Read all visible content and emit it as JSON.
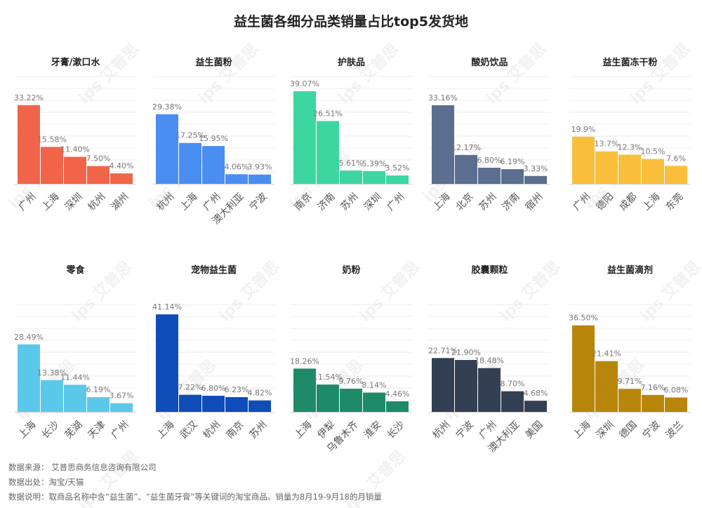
{
  "title": "益生菌各细分品类销量占比top5发货地",
  "footer": {
    "source": "数据来源：  艾普思商务信息咨询有限公司",
    "origin": "数据出处：淘宝/天猫",
    "note": "数据说明：取商品名称中含“益生菌”、“益生菌牙膏”等关键词的淘宝商品。销量为8月19-9月18的月销量"
  },
  "watermark": "ips 艾普思",
  "chart_data": [
    {
      "type": "bar",
      "title": "牙膏/漱口水",
      "color": "#F0654A",
      "categories": [
        "广州",
        "上海",
        "深圳",
        "杭州",
        "湖州"
      ],
      "values": [
        33.22,
        15.58,
        11.4,
        7.5,
        4.4
      ],
      "labels": [
        "33.22%",
        "15.58%",
        "11.40%",
        "7.50%",
        "4.40%"
      ],
      "ylim": [
        0,
        45
      ]
    },
    {
      "type": "bar",
      "title": "益生菌粉",
      "color": "#4B8EF1",
      "categories": [
        "杭州",
        "上海",
        "广州",
        "澳大利亚",
        "宁波"
      ],
      "values": [
        29.38,
        17.25,
        15.95,
        4.06,
        3.93
      ],
      "labels": [
        "29.38%",
        "17.25%",
        "15.95%",
        "4.06%",
        "3.93%"
      ],
      "ylim": [
        0,
        45
      ]
    },
    {
      "type": "bar",
      "title": "护肤品",
      "color": "#3DD6A0",
      "categories": [
        "南京",
        "济南",
        "苏州",
        "深圳",
        "广州"
      ],
      "values": [
        39.07,
        26.51,
        5.61,
        5.39,
        3.52
      ],
      "labels": [
        "39.07%",
        "26.51%",
        "5.61%",
        "5.39%",
        "3.52%"
      ],
      "ylim": [
        0,
        45
      ]
    },
    {
      "type": "bar",
      "title": "酸奶饮品",
      "color": "#5B6E8F",
      "categories": [
        "上海",
        "北京",
        "苏州",
        "济南",
        "宿州"
      ],
      "values": [
        33.16,
        12.17,
        6.8,
        6.19,
        3.33
      ],
      "labels": [
        "33.16%",
        "12.17%",
        "6.80%",
        "6.19%",
        "3.33%"
      ],
      "ylim": [
        0,
        45
      ]
    },
    {
      "type": "bar",
      "title": "益生菌冻干粉",
      "color": "#F9BF3C",
      "categories": [
        "广州",
        "德阳",
        "成都",
        "上海",
        "东莞"
      ],
      "values": [
        19.9,
        13.7,
        12.3,
        10.5,
        7.6
      ],
      "labels": [
        "19.9%",
        "13.7%",
        "12.3%",
        "10.5%",
        "7.6%"
      ],
      "ylim": [
        0,
        45
      ]
    },
    {
      "type": "bar",
      "title": "零食",
      "color": "#5BC8EA",
      "categories": [
        "上海",
        "长沙",
        "芜湖",
        "天津",
        "广州"
      ],
      "values": [
        28.49,
        13.38,
        11.44,
        6.19,
        3.67
      ],
      "labels": [
        "28.49%",
        "13.38%",
        "11.44%",
        "6.19%",
        "3.67%"
      ],
      "ylim": [
        0,
        45
      ]
    },
    {
      "type": "bar",
      "title": "宠物益生菌",
      "color": "#0F4DB8",
      "categories": [
        "上海",
        "武汉",
        "杭州",
        "南京",
        "苏州"
      ],
      "values": [
        41.14,
        7.22,
        6.8,
        6.23,
        4.82
      ],
      "labels": [
        "41.14%",
        "7.22%",
        "6.80%",
        "6.23%",
        "4.82%"
      ],
      "ylim": [
        0,
        45
      ]
    },
    {
      "type": "bar",
      "title": "奶粉",
      "color": "#1E8A68",
      "categories": [
        "上海",
        "伊犁",
        "乌鲁木齐",
        "淮安",
        "长沙"
      ],
      "values": [
        18.26,
        11.54,
        9.76,
        8.14,
        4.46
      ],
      "labels": [
        "18.26%",
        "11.54%",
        "9.76%",
        "8.14%",
        "4.46%"
      ],
      "ylim": [
        0,
        45
      ]
    },
    {
      "type": "bar",
      "title": "胶囊颗粒",
      "color": "#333F52",
      "categories": [
        "杭州",
        "宁波",
        "广州",
        "澳大利亚",
        "美国"
      ],
      "values": [
        22.71,
        21.9,
        18.48,
        8.7,
        4.68
      ],
      "labels": [
        "22.71%",
        "21.90%",
        "18.48%",
        "8.70%",
        "4.68%"
      ],
      "ylim": [
        0,
        45
      ]
    },
    {
      "type": "bar",
      "title": "益生菌滴剂",
      "color": "#B8860B",
      "categories": [
        "上海",
        "深圳",
        "德国",
        "宁波",
        "波兰"
      ],
      "values": [
        36.5,
        21.41,
        9.71,
        7.16,
        6.08
      ],
      "labels": [
        "36.50%",
        "21.41%",
        "9.71%",
        "7.16%",
        "6.08%"
      ],
      "ylim": [
        0,
        45
      ]
    }
  ]
}
